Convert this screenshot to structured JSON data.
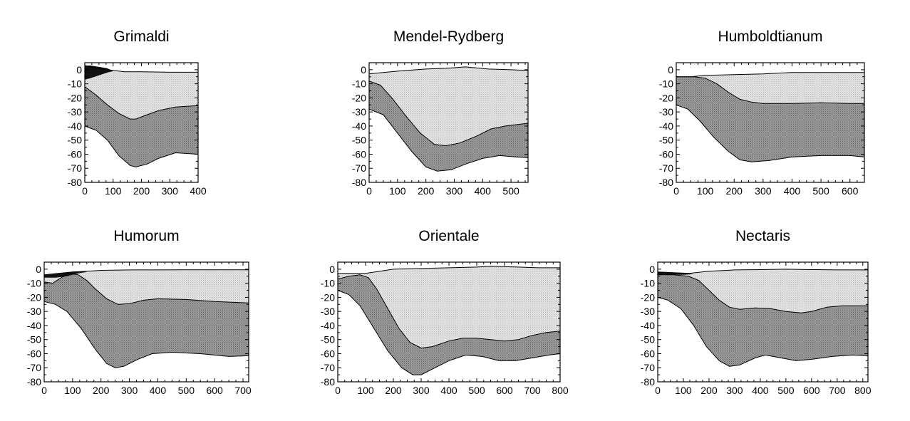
{
  "colors": {
    "crust_light": "#dedede",
    "mantle_dark": "#8e8e8e",
    "mare_black": "#111111",
    "axis": "#000000",
    "background": "#ffffff"
  },
  "chart_data": [
    {
      "type": "area",
      "title": "Grimaldi",
      "xlim": [
        0,
        400
      ],
      "ylim": [
        -80,
        5
      ],
      "xticks": [
        0,
        100,
        200,
        300,
        400
      ],
      "yticks": [
        0,
        -10,
        -20,
        -30,
        -40,
        -50,
        -60,
        -70,
        -80
      ],
      "mare_surface": [
        [
          0,
          3
        ],
        [
          20,
          3
        ],
        [
          50,
          2
        ],
        [
          80,
          1
        ]
      ],
      "mare_base": [
        [
          0,
          -7
        ],
        [
          20,
          -6
        ],
        [
          50,
          -4
        ],
        [
          80,
          -2
        ],
        [
          100,
          -1
        ]
      ],
      "surface": [
        [
          0,
          3
        ],
        [
          50,
          1
        ],
        [
          100,
          -0.5
        ],
        [
          140,
          -1.5
        ],
        [
          200,
          -1.5
        ],
        [
          300,
          -1.8
        ],
        [
          400,
          -1.8
        ]
      ],
      "moho": [
        [
          0,
          -12
        ],
        [
          40,
          -18
        ],
        [
          80,
          -25
        ],
        [
          120,
          -31
        ],
        [
          160,
          -35
        ],
        [
          180,
          -35
        ],
        [
          220,
          -32
        ],
        [
          260,
          -29
        ],
        [
          320,
          -26.5
        ],
        [
          400,
          -25.5
        ]
      ],
      "mantle_base": [
        [
          0,
          -40
        ],
        [
          40,
          -43
        ],
        [
          80,
          -50
        ],
        [
          120,
          -61
        ],
        [
          160,
          -68
        ],
        [
          180,
          -69
        ],
        [
          220,
          -67
        ],
        [
          260,
          -63
        ],
        [
          320,
          -59
        ],
        [
          400,
          -60
        ]
      ]
    },
    {
      "type": "area",
      "title": "Mendel-Rydberg",
      "xlim": [
        0,
        560
      ],
      "ylim": [
        -80,
        5
      ],
      "xticks": [
        0,
        100,
        200,
        300,
        400,
        500
      ],
      "yticks": [
        0,
        -10,
        -20,
        -30,
        -40,
        -50,
        -60,
        -70,
        -80
      ],
      "surface": [
        [
          0,
          -3
        ],
        [
          50,
          -2
        ],
        [
          100,
          -1
        ],
        [
          200,
          0.5
        ],
        [
          270,
          1
        ],
        [
          340,
          2
        ],
        [
          420,
          0.5
        ],
        [
          500,
          0
        ],
        [
          560,
          -0.5
        ]
      ],
      "moho": [
        [
          0,
          -8
        ],
        [
          40,
          -11
        ],
        [
          80,
          -20
        ],
        [
          130,
          -33
        ],
        [
          180,
          -45
        ],
        [
          230,
          -53
        ],
        [
          270,
          -54
        ],
        [
          320,
          -52
        ],
        [
          380,
          -47
        ],
        [
          430,
          -42
        ],
        [
          480,
          -40
        ],
        [
          560,
          -38
        ]
      ],
      "mantle_base": [
        [
          0,
          -28
        ],
        [
          50,
          -32
        ],
        [
          100,
          -45
        ],
        [
          150,
          -58
        ],
        [
          200,
          -69
        ],
        [
          240,
          -72
        ],
        [
          290,
          -71
        ],
        [
          340,
          -67
        ],
        [
          400,
          -63
        ],
        [
          460,
          -61
        ],
        [
          520,
          -62
        ],
        [
          560,
          -62.5
        ]
      ]
    },
    {
      "type": "area",
      "title": "Humboldtianum",
      "xlim": [
        0,
        650
      ],
      "ylim": [
        -80,
        5
      ],
      "xticks": [
        0,
        100,
        200,
        300,
        400,
        500,
        600
      ],
      "yticks": [
        0,
        -10,
        -20,
        -30,
        -40,
        -50,
        -60,
        -70,
        -80
      ],
      "surface": [
        [
          0,
          -5
        ],
        [
          50,
          -5
        ],
        [
          100,
          -4
        ],
        [
          200,
          -3.5
        ],
        [
          300,
          -3
        ],
        [
          400,
          -2
        ],
        [
          500,
          -2
        ],
        [
          600,
          -2
        ],
        [
          650,
          -2
        ]
      ],
      "moho": [
        [
          0,
          -5
        ],
        [
          60,
          -5
        ],
        [
          100,
          -6
        ],
        [
          140,
          -10
        ],
        [
          180,
          -16
        ],
        [
          220,
          -21
        ],
        [
          260,
          -23
        ],
        [
          300,
          -24
        ],
        [
          400,
          -24
        ],
        [
          500,
          -23.5
        ],
        [
          600,
          -24
        ],
        [
          650,
          -24
        ]
      ],
      "mantle_base": [
        [
          0,
          -25
        ],
        [
          40,
          -28
        ],
        [
          80,
          -36
        ],
        [
          130,
          -48
        ],
        [
          180,
          -58
        ],
        [
          220,
          -64
        ],
        [
          260,
          -65.5
        ],
        [
          320,
          -64.5
        ],
        [
          400,
          -62
        ],
        [
          500,
          -61
        ],
        [
          600,
          -61
        ],
        [
          650,
          -62
        ]
      ]
    },
    {
      "type": "area",
      "title": "Humorum",
      "xlim": [
        0,
        720
      ],
      "ylim": [
        -80,
        5
      ],
      "xticks": [
        0,
        100,
        200,
        300,
        400,
        500,
        600,
        700
      ],
      "yticks": [
        0,
        -10,
        -20,
        -30,
        -40,
        -50,
        -60,
        -70,
        -80
      ],
      "mare_surface": [
        [
          0,
          -4
        ],
        [
          50,
          -3
        ],
        [
          100,
          -2
        ],
        [
          140,
          -1.5
        ]
      ],
      "mare_base": [
        [
          0,
          -6
        ],
        [
          40,
          -6
        ],
        [
          80,
          -5
        ],
        [
          120,
          -3
        ],
        [
          150,
          -2
        ]
      ],
      "surface": [
        [
          0,
          -4
        ],
        [
          100,
          -2
        ],
        [
          150,
          -1.5
        ],
        [
          200,
          -0.8
        ],
        [
          300,
          -0.5
        ],
        [
          400,
          -0.5
        ],
        [
          500,
          -0.4
        ],
        [
          600,
          -0.4
        ],
        [
          720,
          -0.4
        ]
      ],
      "moho": [
        [
          0,
          -9
        ],
        [
          30,
          -10
        ],
        [
          60,
          -6
        ],
        [
          90,
          -3
        ],
        [
          120,
          -4
        ],
        [
          150,
          -8
        ],
        [
          180,
          -14
        ],
        [
          220,
          -21
        ],
        [
          260,
          -25
        ],
        [
          300,
          -24.5
        ],
        [
          350,
          -22
        ],
        [
          400,
          -21
        ],
        [
          500,
          -21.5
        ],
        [
          600,
          -23
        ],
        [
          720,
          -24
        ]
      ],
      "mantle_base": [
        [
          0,
          -23
        ],
        [
          40,
          -25
        ],
        [
          80,
          -30
        ],
        [
          130,
          -42
        ],
        [
          180,
          -57
        ],
        [
          220,
          -67
        ],
        [
          250,
          -70
        ],
        [
          280,
          -69
        ],
        [
          330,
          -64
        ],
        [
          380,
          -60
        ],
        [
          450,
          -59
        ],
        [
          550,
          -60
        ],
        [
          650,
          -62
        ],
        [
          720,
          -61.5
        ]
      ]
    },
    {
      "type": "area",
      "title": "Orientale",
      "xlim": [
        0,
        800
      ],
      "ylim": [
        -80,
        5
      ],
      "xticks": [
        0,
        100,
        200,
        300,
        400,
        500,
        600,
        700,
        800
      ],
      "yticks": [
        0,
        -10,
        -20,
        -30,
        -40,
        -50,
        -60,
        -70,
        -80
      ],
      "surface": [
        [
          0,
          -3
        ],
        [
          50,
          -3
        ],
        [
          100,
          -3
        ],
        [
          200,
          0
        ],
        [
          300,
          0.5
        ],
        [
          400,
          1
        ],
        [
          500,
          1.5
        ],
        [
          550,
          2
        ],
        [
          650,
          1.5
        ],
        [
          720,
          1
        ],
        [
          800,
          1
        ]
      ],
      "moho": [
        [
          0,
          -7
        ],
        [
          40,
          -5
        ],
        [
          80,
          -4
        ],
        [
          110,
          -6
        ],
        [
          140,
          -14
        ],
        [
          180,
          -28
        ],
        [
          220,
          -42
        ],
        [
          260,
          -52
        ],
        [
          300,
          -56
        ],
        [
          340,
          -55
        ],
        [
          400,
          -51
        ],
        [
          450,
          -49
        ],
        [
          500,
          -49
        ],
        [
          550,
          -50
        ],
        [
          600,
          -51
        ],
        [
          650,
          -50
        ],
        [
          700,
          -47
        ],
        [
          750,
          -45
        ],
        [
          800,
          -44
        ]
      ],
      "mantle_base": [
        [
          0,
          -15
        ],
        [
          40,
          -18
        ],
        [
          80,
          -26
        ],
        [
          130,
          -42
        ],
        [
          180,
          -58
        ],
        [
          230,
          -70
        ],
        [
          270,
          -75
        ],
        [
          300,
          -75
        ],
        [
          340,
          -71
        ],
        [
          400,
          -65
        ],
        [
          460,
          -61
        ],
        [
          520,
          -62
        ],
        [
          580,
          -65
        ],
        [
          640,
          -65
        ],
        [
          700,
          -63
        ],
        [
          760,
          -61
        ],
        [
          800,
          -60
        ]
      ]
    },
    {
      "type": "area",
      "title": "Nectaris",
      "xlim": [
        0,
        820
      ],
      "ylim": [
        -80,
        5
      ],
      "xticks": [
        0,
        100,
        200,
        300,
        400,
        500,
        600,
        700,
        800
      ],
      "yticks": [
        0,
        -10,
        -20,
        -30,
        -40,
        -50,
        -60,
        -70,
        -80
      ],
      "mare_surface": [
        [
          0,
          -2
        ],
        [
          60,
          -2.5
        ],
        [
          120,
          -3
        ]
      ],
      "mare_base": [
        [
          0,
          -4
        ],
        [
          60,
          -4
        ],
        [
          100,
          -4
        ],
        [
          140,
          -3.5
        ]
      ],
      "surface": [
        [
          0,
          -2
        ],
        [
          120,
          -3
        ],
        [
          200,
          -1.5
        ],
        [
          300,
          -0.5
        ],
        [
          400,
          -0.3
        ],
        [
          500,
          0
        ],
        [
          600,
          -0.3
        ],
        [
          700,
          -0.5
        ],
        [
          820,
          -0.5
        ]
      ],
      "moho": [
        [
          0,
          -4
        ],
        [
          60,
          -4
        ],
        [
          120,
          -5
        ],
        [
          160,
          -8
        ],
        [
          200,
          -15
        ],
        [
          240,
          -22
        ],
        [
          280,
          -27
        ],
        [
          320,
          -28.5
        ],
        [
          380,
          -27.5
        ],
        [
          440,
          -28
        ],
        [
          500,
          -30
        ],
        [
          560,
          -31
        ],
        [
          600,
          -30
        ],
        [
          660,
          -27
        ],
        [
          720,
          -26
        ],
        [
          820,
          -26
        ]
      ],
      "mantle_base": [
        [
          0,
          -20
        ],
        [
          40,
          -22
        ],
        [
          90,
          -28
        ],
        [
          140,
          -40
        ],
        [
          190,
          -55
        ],
        [
          240,
          -65
        ],
        [
          280,
          -69
        ],
        [
          320,
          -68
        ],
        [
          380,
          -63
        ],
        [
          420,
          -61
        ],
        [
          480,
          -63
        ],
        [
          540,
          -65
        ],
        [
          600,
          -64
        ],
        [
          680,
          -62
        ],
        [
          760,
          -61
        ],
        [
          820,
          -61.5
        ]
      ]
    }
  ]
}
